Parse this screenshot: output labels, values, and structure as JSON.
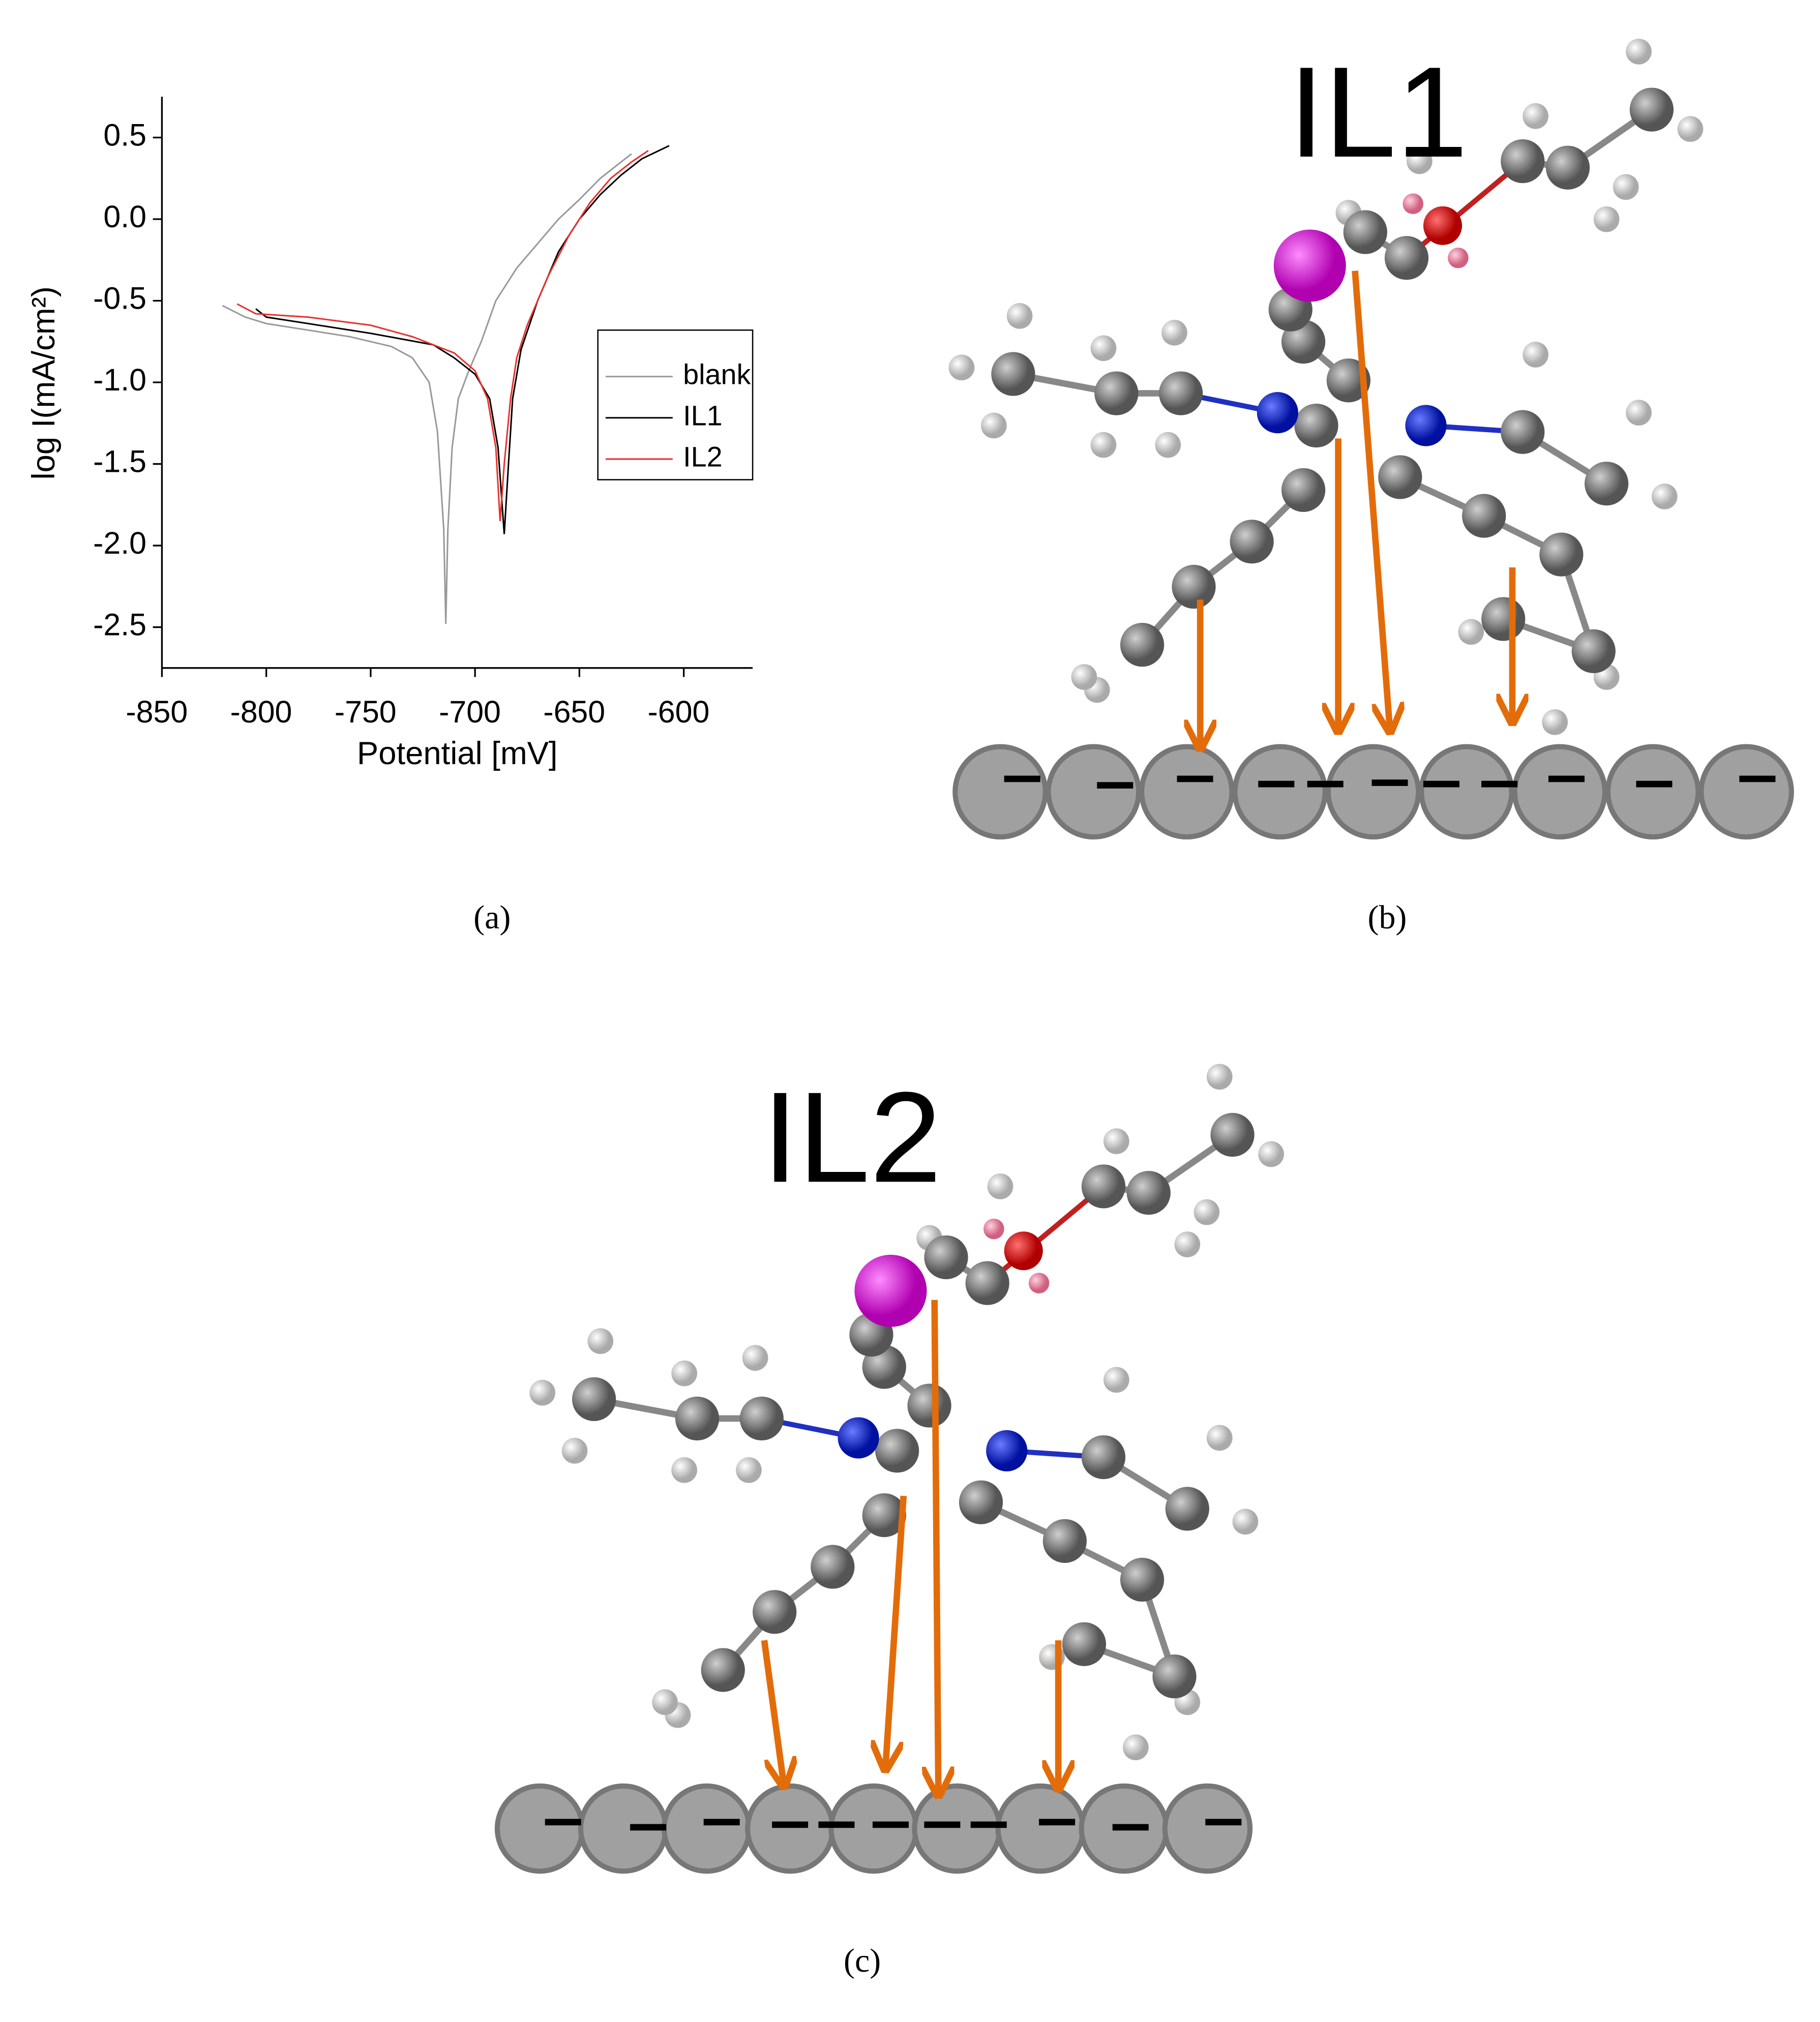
{
  "chart_data": {
    "type": "line",
    "xlabel": "Potential [mV]",
    "ylabel": "log I(mA/cm²)",
    "xlim": [
      -850,
      -567
    ],
    "xticks": [
      -850,
      -800,
      -750,
      -700,
      -650,
      -600
    ],
    "ylim": [
      -2.75,
      0.75
    ],
    "yticks": [
      0.5,
      {
        "value": 0,
        "label": "0.0"
      },
      -0.5,
      {
        "value": -1,
        "label": "-1.0"
      },
      -1.5,
      {
        "value": -2,
        "label": "-2.0"
      },
      -2.5
    ],
    "legend": "center right",
    "series": [
      {
        "name": "blank",
        "color": "#999999",
        "x": [
          -821,
          -810,
          -800,
          -780,
          -760,
          -740,
          -730,
          -722,
          -718,
          -715,
          -714,
          -713,
          -711,
          -708,
          -703,
          -697,
          -690,
          -680,
          -670,
          -660,
          -650,
          -640,
          -630,
          -625
        ],
        "values": [
          -0.53,
          -0.6,
          -0.64,
          -0.68,
          -0.72,
          -0.78,
          -0.85,
          -1.0,
          -1.3,
          -1.9,
          -2.48,
          -1.9,
          -1.4,
          -1.1,
          -0.93,
          -0.75,
          -0.5,
          -0.3,
          -0.15,
          0,
          0.12,
          0.25,
          0.35,
          0.4
        ]
      },
      {
        "name": "IL1",
        "color": "#000000",
        "x": [
          -805,
          -800,
          -780,
          -750,
          -720,
          -710,
          -700,
          -693,
          -689,
          -686,
          -684,
          -682,
          -678,
          -670,
          -660,
          -650,
          -640,
          -630,
          -620,
          -607
        ],
        "values": [
          -0.55,
          -0.6,
          -0.64,
          -0.7,
          -0.77,
          -0.85,
          -0.95,
          -1.1,
          -1.4,
          -1.93,
          -1.5,
          -1.1,
          -0.8,
          -0.5,
          -0.2,
          0,
          0.15,
          0.27,
          0.37,
          0.45
        ]
      },
      {
        "name": "IL2",
        "color": "#e8322e",
        "x": [
          -814,
          -805,
          -780,
          -750,
          -730,
          -710,
          -700,
          -694,
          -690,
          -688,
          -686,
          -683,
          -680,
          -675,
          -665,
          -655,
          -645,
          -635,
          -625,
          -617
        ],
        "values": [
          -0.52,
          -0.58,
          -0.6,
          -0.65,
          -0.72,
          -0.82,
          -0.93,
          -1.1,
          -1.4,
          -1.85,
          -1.5,
          -1.1,
          -0.85,
          -0.65,
          -0.35,
          -0.1,
          0.1,
          0.25,
          0.35,
          0.42
        ]
      }
    ]
  },
  "captions": [
    "(a)",
    "(b)",
    "(c)"
  ],
  "diagrams": [
    {
      "title": "IL1"
    },
    {
      "title": "IL2"
    }
  ]
}
